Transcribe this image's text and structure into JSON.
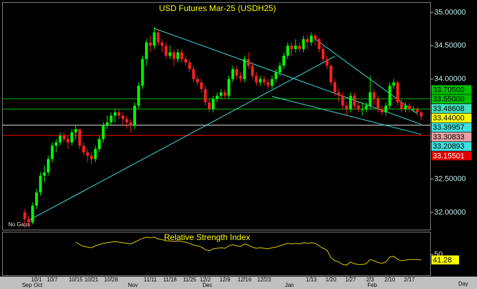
{
  "chart_data": [
    {
      "type": "candlestick",
      "title": "USD Futures Mar-25 (USDH25)",
      "categories": [
        null,
        null,
        null,
        "10/1",
        null,
        null,
        null,
        "10/7",
        null,
        null,
        null,
        null,
        null,
        "10/15",
        null,
        null,
        null,
        "10/21",
        null,
        null,
        null,
        null,
        "10/28",
        null,
        null,
        null,
        null,
        null,
        null,
        null,
        null,
        null,
        "11/11",
        null,
        null,
        null,
        null,
        "11/18",
        null,
        null,
        null,
        null,
        "11/25",
        null,
        null,
        null,
        "12/2",
        null,
        null,
        null,
        null,
        "12/9",
        null,
        null,
        null,
        null,
        "12/16",
        null,
        null,
        null,
        null,
        "12/23",
        null,
        null,
        null,
        null,
        null,
        null,
        null,
        null,
        null,
        null,
        null,
        "1/13",
        null,
        null,
        null,
        null,
        "1/20",
        null,
        null,
        null,
        null,
        "1/27",
        null,
        null,
        null,
        null,
        "2/3",
        null,
        null,
        null,
        null,
        "2/10",
        null,
        null,
        null,
        null,
        "2/17",
        null,
        null,
        null
      ],
      "open": [
        32.0,
        31.9,
        31.85,
        32.1,
        32.3,
        32.55,
        32.6,
        32.8,
        33.0,
        33.05,
        33.15,
        33.1,
        33.05,
        33.2,
        33.25,
        33.0,
        32.9,
        32.85,
        32.8,
        32.95,
        33.1,
        33.3,
        33.35,
        33.45,
        33.5,
        33.45,
        33.4,
        33.35,
        33.3,
        33.6,
        33.9,
        34.3,
        34.55,
        34.5,
        34.7,
        34.55,
        34.5,
        34.35,
        34.4,
        34.3,
        34.4,
        34.3,
        34.25,
        34.15,
        34.0,
        33.95,
        33.85,
        33.65,
        33.55,
        33.7,
        33.75,
        33.8,
        33.75,
        34.0,
        34.15,
        34.05,
        34.0,
        34.3,
        34.2,
        34.05,
        33.95,
        34.0,
        33.95,
        33.9,
        34.0,
        34.1,
        34.2,
        34.35,
        34.5,
        34.45,
        34.5,
        34.45,
        34.6,
        34.55,
        34.65,
        34.6,
        34.45,
        34.3,
        34.2,
        33.95,
        33.8,
        33.75,
        33.6,
        33.55,
        33.75,
        33.6,
        33.55,
        33.55,
        33.6,
        33.8,
        33.7,
        33.55,
        33.5,
        33.6,
        33.9,
        33.95,
        33.65,
        33.55,
        33.6,
        33.55,
        33.55,
        33.5
      ],
      "high": [
        32.05,
        31.95,
        32.15,
        32.35,
        32.6,
        32.7,
        32.85,
        33.05,
        33.1,
        33.2,
        33.2,
        33.15,
        33.25,
        33.3,
        33.25,
        33.05,
        32.95,
        32.9,
        33.0,
        33.15,
        33.35,
        33.45,
        33.5,
        33.55,
        33.55,
        33.5,
        33.45,
        33.4,
        33.65,
        33.95,
        34.35,
        34.6,
        34.65,
        34.78,
        34.75,
        34.6,
        34.55,
        34.5,
        34.45,
        34.45,
        34.45,
        34.35,
        34.3,
        34.2,
        34.05,
        34.0,
        33.9,
        33.7,
        33.75,
        33.8,
        33.85,
        33.85,
        34.05,
        34.2,
        34.2,
        34.1,
        34.35,
        34.4,
        34.25,
        34.1,
        34.05,
        34.05,
        34.0,
        34.05,
        34.15,
        34.25,
        34.4,
        34.55,
        34.55,
        34.6,
        34.55,
        34.65,
        34.65,
        34.7,
        34.68,
        34.62,
        34.5,
        34.35,
        34.22,
        34.0,
        33.85,
        33.8,
        33.65,
        33.8,
        33.8,
        33.65,
        33.65,
        33.65,
        34.05,
        33.85,
        33.75,
        33.6,
        33.65,
        33.95,
        34.0,
        33.98,
        33.7,
        33.65,
        33.65,
        33.6,
        33.58,
        33.52
      ],
      "low": [
        31.8,
        31.78,
        31.82,
        32.05,
        32.25,
        32.45,
        32.55,
        32.75,
        32.9,
        33.0,
        33.05,
        32.95,
        33.0,
        33.1,
        32.95,
        32.85,
        32.75,
        32.72,
        32.75,
        32.9,
        33.05,
        33.25,
        33.3,
        33.35,
        33.4,
        33.3,
        33.25,
        33.2,
        33.25,
        33.55,
        33.85,
        34.2,
        34.4,
        34.45,
        34.5,
        34.4,
        34.3,
        34.3,
        34.2,
        34.25,
        34.25,
        34.2,
        34.1,
        33.95,
        33.9,
        33.8,
        33.6,
        33.5,
        33.5,
        33.65,
        33.7,
        33.7,
        33.7,
        33.95,
        34.0,
        33.95,
        33.95,
        34.15,
        34.0,
        33.9,
        33.9,
        33.9,
        33.85,
        33.85,
        33.95,
        34.05,
        34.15,
        34.3,
        34.35,
        34.4,
        34.4,
        34.4,
        34.45,
        34.5,
        34.5,
        34.4,
        34.25,
        34.15,
        33.9,
        33.75,
        33.65,
        33.55,
        33.45,
        33.5,
        33.55,
        33.5,
        33.45,
        33.5,
        33.55,
        33.6,
        33.5,
        33.45,
        33.45,
        33.55,
        33.85,
        33.6,
        33.5,
        33.5,
        33.5,
        33.5,
        33.45,
        33.38
      ],
      "close": [
        31.9,
        31.85,
        32.1,
        32.3,
        32.55,
        32.6,
        32.8,
        33.0,
        33.05,
        33.15,
        33.1,
        33.05,
        33.2,
        33.25,
        33.0,
        32.9,
        32.85,
        32.8,
        32.95,
        33.1,
        33.3,
        33.35,
        33.45,
        33.5,
        33.45,
        33.4,
        33.35,
        33.3,
        33.6,
        33.9,
        34.3,
        34.55,
        34.5,
        34.7,
        34.55,
        34.5,
        34.35,
        34.4,
        34.3,
        34.4,
        34.3,
        34.25,
        34.15,
        34.0,
        33.95,
        33.85,
        33.65,
        33.55,
        33.7,
        33.75,
        33.8,
        33.75,
        34.0,
        34.15,
        34.05,
        34.0,
        34.3,
        34.2,
        34.05,
        33.95,
        34.0,
        33.95,
        33.9,
        34.0,
        34.1,
        34.2,
        34.35,
        34.5,
        34.45,
        34.5,
        34.45,
        34.6,
        34.55,
        34.65,
        34.6,
        34.45,
        34.3,
        34.2,
        33.95,
        33.8,
        33.75,
        33.6,
        33.55,
        33.75,
        33.6,
        33.55,
        33.55,
        33.6,
        33.8,
        33.7,
        33.55,
        33.5,
        33.6,
        33.9,
        33.95,
        33.65,
        33.55,
        33.6,
        33.55,
        33.55,
        33.5,
        33.44
      ],
      "up_color": "#00ff00",
      "down_color": "#ff2020",
      "ylim": [
        31.74,
        35.134
      ],
      "yticks": [
        {
          "value": 35,
          "label": "35.00000"
        },
        {
          "value": 34.5,
          "label": "34.50000"
        },
        {
          "value": 34,
          "label": "34.00000"
        },
        {
          "value": 32.5,
          "label": "32.50000"
        },
        {
          "value": 32,
          "label": "32.00000"
        }
      ],
      "levels": [
        {
          "value": 33.705,
          "color": "#00c000"
        },
        {
          "value": 33.55,
          "color": "#00c000"
        },
        {
          "value": 33.30833,
          "color": "#e0e0e0"
        },
        {
          "value": 33.15501,
          "color": "#ff0000"
        }
      ],
      "value_labels": [
        {
          "value": 33.705,
          "label": "33.70500",
          "background": "#00c000",
          "color": "#000000"
        },
        {
          "value": 33.55,
          "label": "33.55000",
          "background": "#00c000",
          "color": "#000000"
        },
        {
          "value": 33.48608,
          "label": "33.48608",
          "background": "#40e0c0",
          "color": "#000000"
        },
        {
          "value": 33.44,
          "label": "33.44000",
          "background": "#ffff00",
          "color": "#000000"
        },
        {
          "value": 33.39957,
          "label": "33.39957",
          "background": "#40e0e0",
          "color": "#000000"
        },
        {
          "value": 33.30833,
          "label": "33.30833",
          "background": "#e8a0a0",
          "color": "#000000"
        },
        {
          "value": 33.20893,
          "label": "33.20893",
          "background": "#40e0e0",
          "color": "#000000"
        },
        {
          "value": 33.15501,
          "label": "33.15501",
          "background": "#e00000",
          "color": "#ffffff"
        }
      ],
      "trendline_color": "#40e0e0",
      "trendlines": [
        {
          "x": [
            33,
            101
          ],
          "y": [
            34.76,
            33.32
          ]
        },
        {
          "x": [
            1,
            79
          ],
          "y": [
            31.88,
            34.34
          ]
        },
        {
          "x": [
            63,
            101
          ],
          "y": [
            33.74,
            33.17
          ]
        },
        {
          "x": [
            74,
            100
          ],
          "y": [
            34.6,
            33.48
          ]
        }
      ],
      "months": [
        {
          "label": "Sep",
          "start": 0
        },
        {
          "label": "Oct",
          "start": 3
        },
        {
          "label": "Nov",
          "start": 27
        },
        {
          "label": "Dec",
          "start": 46
        },
        {
          "label": "Jan",
          "start": 67
        },
        {
          "label": "Feb",
          "start": 88
        }
      ],
      "note": "No Gaps",
      "period": "Day"
    },
    {
      "type": "line",
      "title": "Relative Strength Index",
      "color": "#e0d000",
      "values": [
        null,
        null,
        null,
        null,
        null,
        null,
        null,
        null,
        null,
        null,
        null,
        null,
        null,
        70,
        66,
        63,
        62,
        61,
        64,
        66,
        68,
        69,
        70,
        71,
        70,
        69,
        68,
        67,
        70,
        73,
        76,
        78,
        77,
        78,
        75,
        74,
        72,
        72,
        71,
        72,
        71,
        70,
        68,
        65,
        64,
        62,
        58,
        56,
        59,
        60,
        61,
        60,
        64,
        66,
        64,
        63,
        67,
        65,
        62,
        60,
        61,
        60,
        59,
        61,
        62,
        64,
        66,
        68,
        67,
        68,
        67,
        69,
        68,
        69,
        68,
        64,
        60,
        57,
        45,
        40,
        38,
        34,
        33,
        38,
        35,
        34,
        34,
        35,
        42,
        40,
        37,
        36,
        38,
        46,
        47,
        42,
        40,
        41,
        42,
        42,
        42,
        41.28
      ],
      "value_labels": [
        null,
        null,
        null,
        null,
        null,
        null,
        null,
        null,
        null,
        null,
        null,
        null,
        null,
        null,
        null,
        null,
        null,
        null,
        null,
        null,
        null,
        null,
        null,
        null,
        null,
        null,
        null,
        null,
        null,
        null,
        null,
        null,
        null,
        null,
        null,
        null,
        null,
        null,
        null,
        null,
        null,
        null,
        null,
        null,
        null,
        null,
        null,
        null,
        null,
        null,
        null,
        null,
        null,
        null,
        null,
        null,
        null,
        null,
        null,
        null,
        null,
        null,
        null,
        null,
        null,
        null,
        null,
        null,
        null,
        null,
        null,
        null,
        null,
        null,
        null,
        null,
        null,
        null,
        null,
        null,
        null,
        null,
        null,
        null,
        null,
        null,
        null,
        null,
        null,
        null,
        null,
        null,
        null,
        null,
        null,
        null,
        null,
        null,
        null,
        null,
        null,
        "41.28"
      ],
      "ylim": [
        16.7,
        85.6
      ],
      "yticks": [
        50
      ]
    }
  ]
}
